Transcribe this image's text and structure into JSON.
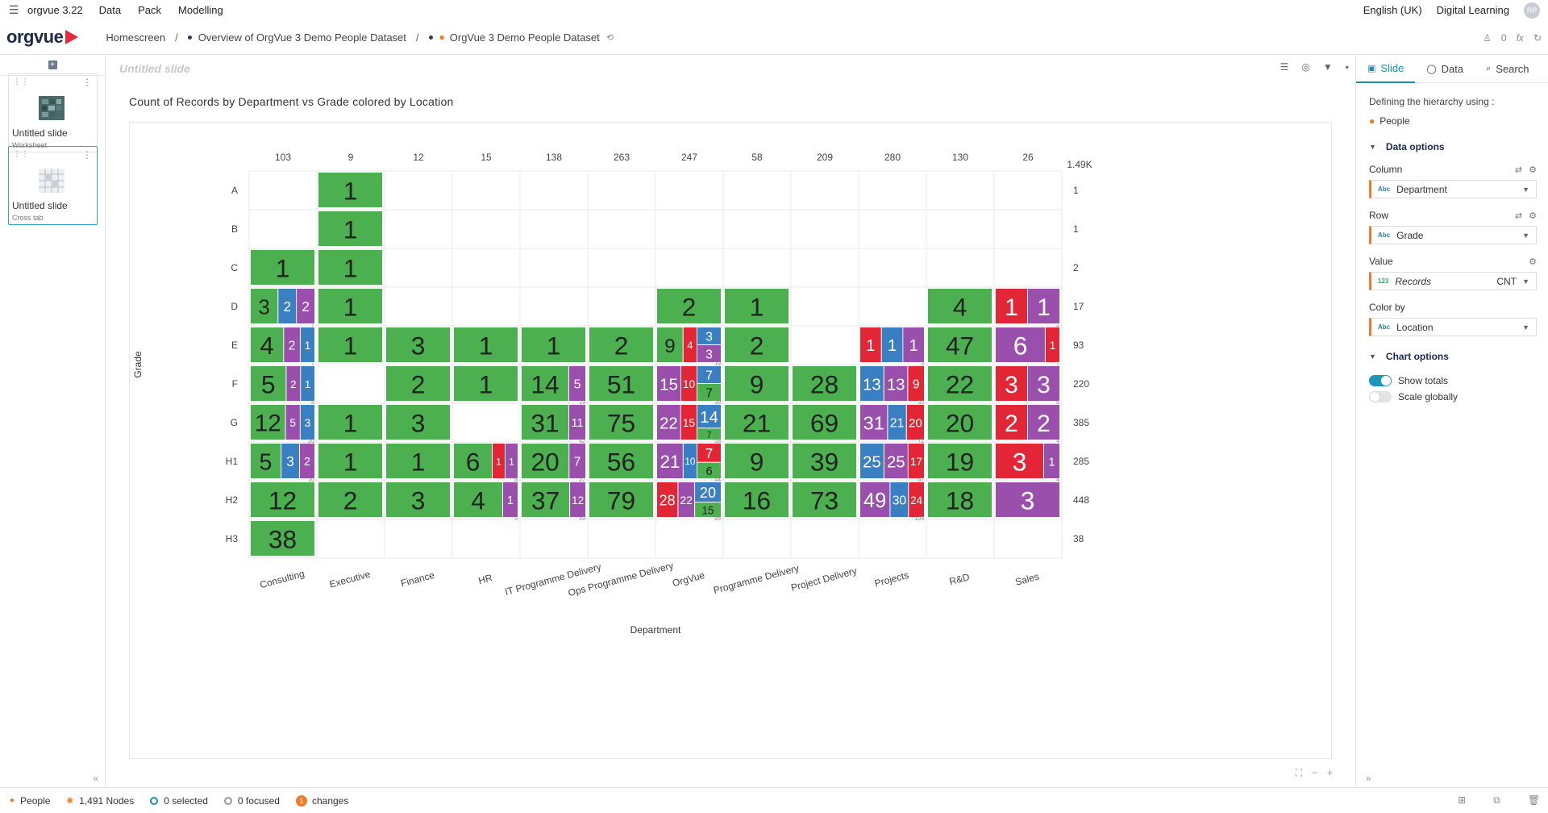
{
  "app": {
    "name": "orgvue 3.22",
    "menu": [
      "Data",
      "Pack",
      "Modelling"
    ]
  },
  "topbar_right": {
    "language": "English (UK)",
    "org": "Digital Learning",
    "avatar": "RP"
  },
  "logo": {
    "text": "orgvue"
  },
  "breadcrumb": {
    "home": "Homescreen",
    "overview": "Overview of OrgVue 3 Demo People Dataset",
    "dataset": "OrgVue 3 Demo People Dataset"
  },
  "breadcrumb_right": {
    "counter": "0",
    "fx": "fx"
  },
  "slides": [
    {
      "title": "Untitled slide",
      "subtitle": "Worksheet"
    },
    {
      "title": "Untitled slide",
      "subtitle": "Cross tab"
    }
  ],
  "main": {
    "slide_title": "Untitled slide",
    "chart_title": "Count of Records by Department vs Grade colored by Location"
  },
  "right_panel": {
    "tabs": [
      {
        "label": "Slide"
      },
      {
        "label": "Data"
      },
      {
        "label": "Search"
      }
    ],
    "hier_label": "Defining the hierarchy using :",
    "hier_value": "People",
    "data_options": "Data options",
    "column_label": "Column",
    "column_value": "Department",
    "row_label": "Row",
    "row_value": "Grade",
    "value_label": "Value",
    "value_value": "Records",
    "value_agg": "CNT",
    "colorby_label": "Color by",
    "colorby_value": "Location",
    "chart_options": "Chart options",
    "show_totals": "Show totals",
    "scale_globally": "Scale globally",
    "type_text": "Abc",
    "type_num": "123"
  },
  "status": {
    "dataset": "People",
    "nodes": "1,491 Nodes",
    "selected": "0 selected",
    "focused": "0 focused",
    "changes": "changes",
    "changes_count": "1"
  },
  "colors": {
    "green": "#4caf50",
    "blue": "#3a7fc1",
    "purple": "#9b4fad",
    "red": "#e32636",
    "accent": "#1a8fb0"
  },
  "chart_data": {
    "type": "table",
    "xlabel": "Department",
    "ylabel": "Grade",
    "columns": [
      "Consulting",
      "Executive",
      "Finance",
      "HR",
      "IT Programme Delivery",
      "Ops Programme Delivery",
      "OrgVue",
      "Programme Delivery",
      "Project Delivery",
      "Projects",
      "R&D",
      "Sales"
    ],
    "rows": [
      "A",
      "B",
      "C",
      "D",
      "E",
      "F",
      "G",
      "H1",
      "H2",
      "H3"
    ],
    "column_totals": [
      "103",
      "9",
      "12",
      "15",
      "138",
      "263",
      "247",
      "58",
      "209",
      "280",
      "130",
      "26"
    ],
    "grand_total": "1.49K",
    "row_totals": [
      "1",
      "1",
      "2",
      "17",
      "93",
      "220",
      "385",
      "285",
      "448",
      "38"
    ],
    "cells": [
      {
        "r": 0,
        "c": 1,
        "s": [
          {
            "v": "1",
            "col": "green"
          }
        ]
      },
      {
        "r": 1,
        "c": 1,
        "s": [
          {
            "v": "1",
            "col": "green"
          }
        ]
      },
      {
        "r": 2,
        "c": 0,
        "s": [
          {
            "v": "1",
            "col": "green"
          }
        ]
      },
      {
        "r": 2,
        "c": 1,
        "s": [
          {
            "v": "1",
            "col": "green"
          }
        ]
      },
      {
        "r": 3,
        "c": 0,
        "t": "7",
        "s": [
          {
            "v": "3",
            "col": "green"
          },
          {
            "v": "2",
            "col": "blue"
          },
          {
            "v": "2",
            "col": "purple"
          }
        ]
      },
      {
        "r": 3,
        "c": 1,
        "s": [
          {
            "v": "1",
            "col": "green"
          }
        ]
      },
      {
        "r": 3,
        "c": 6,
        "s": [
          {
            "v": "2",
            "col": "green"
          }
        ]
      },
      {
        "r": 3,
        "c": 7,
        "s": [
          {
            "v": "1",
            "col": "green"
          }
        ]
      },
      {
        "r": 3,
        "c": 10,
        "s": [
          {
            "v": "4",
            "col": "green"
          }
        ]
      },
      {
        "r": 3,
        "c": 11,
        "t": "2",
        "s": [
          {
            "v": "1",
            "col": "red"
          },
          {
            "v": "1",
            "col": "purple"
          }
        ]
      },
      {
        "r": 4,
        "c": 0,
        "t": "7",
        "s": [
          {
            "v": "4",
            "col": "green"
          },
          {
            "v": "2",
            "col": "purple"
          },
          {
            "v": "1",
            "col": "blue"
          }
        ]
      },
      {
        "r": 4,
        "c": 1,
        "s": [
          {
            "v": "1",
            "col": "green"
          }
        ]
      },
      {
        "r": 4,
        "c": 2,
        "s": [
          {
            "v": "3",
            "col": "green"
          }
        ]
      },
      {
        "r": 4,
        "c": 3,
        "s": [
          {
            "v": "1",
            "col": "green"
          }
        ]
      },
      {
        "r": 4,
        "c": 4,
        "s": [
          {
            "v": "1",
            "col": "green"
          }
        ]
      },
      {
        "r": 4,
        "c": 5,
        "s": [
          {
            "v": "2",
            "col": "green"
          }
        ]
      },
      {
        "r": 4,
        "c": 6,
        "t": "19",
        "s": [
          {
            "v": "9",
            "col": "green"
          },
          {
            "v": "4",
            "col": "red"
          },
          {
            "v": "3",
            "col": "blue"
          },
          {
            "v": "3",
            "col": "purple"
          }
        ]
      },
      {
        "r": 4,
        "c": 7,
        "s": [
          {
            "v": "2",
            "col": "green"
          }
        ]
      },
      {
        "r": 4,
        "c": 9,
        "t": "3",
        "s": [
          {
            "v": "1",
            "col": "red"
          },
          {
            "v": "1",
            "col": "blue"
          },
          {
            "v": "1",
            "col": "purple"
          }
        ]
      },
      {
        "r": 4,
        "c": 10,
        "s": [
          {
            "v": "47",
            "col": "green"
          }
        ]
      },
      {
        "r": 4,
        "c": 11,
        "t": "7",
        "s": [
          {
            "v": "6",
            "col": "purple"
          },
          {
            "v": "1",
            "col": "red"
          }
        ]
      },
      {
        "r": 5,
        "c": 0,
        "t": "8",
        "s": [
          {
            "v": "5",
            "col": "green"
          },
          {
            "v": "2",
            "col": "purple"
          },
          {
            "v": "1",
            "col": "blue"
          }
        ]
      },
      {
        "r": 5,
        "c": 2,
        "s": [
          {
            "v": "2",
            "col": "green"
          }
        ]
      },
      {
        "r": 5,
        "c": 3,
        "s": [
          {
            "v": "1",
            "col": "green"
          }
        ]
      },
      {
        "r": 5,
        "c": 4,
        "t": "19",
        "s": [
          {
            "v": "14",
            "col": "green"
          },
          {
            "v": "5",
            "col": "purple"
          }
        ]
      },
      {
        "r": 5,
        "c": 5,
        "s": [
          {
            "v": "51",
            "col": "green"
          }
        ]
      },
      {
        "r": 5,
        "c": 6,
        "t": "39",
        "s": [
          {
            "v": "15",
            "col": "purple"
          },
          {
            "v": "10",
            "col": "red"
          },
          {
            "v": "7",
            "col": "blue"
          },
          {
            "v": "7",
            "col": "green"
          }
        ]
      },
      {
        "r": 5,
        "c": 7,
        "s": [
          {
            "v": "9",
            "col": "green"
          }
        ]
      },
      {
        "r": 5,
        "c": 8,
        "s": [
          {
            "v": "28",
            "col": "green"
          }
        ]
      },
      {
        "r": 5,
        "c": 9,
        "t": "35",
        "s": [
          {
            "v": "13",
            "col": "blue"
          },
          {
            "v": "13",
            "col": "purple"
          },
          {
            "v": "9",
            "col": "red"
          }
        ]
      },
      {
        "r": 5,
        "c": 10,
        "s": [
          {
            "v": "22",
            "col": "green"
          }
        ]
      },
      {
        "r": 5,
        "c": 11,
        "t": "6",
        "s": [
          {
            "v": "3",
            "col": "red"
          },
          {
            "v": "3",
            "col": "purple"
          }
        ]
      },
      {
        "r": 6,
        "c": 0,
        "t": "20",
        "s": [
          {
            "v": "12",
            "col": "green"
          },
          {
            "v": "5",
            "col": "purple"
          },
          {
            "v": "3",
            "col": "blue"
          }
        ]
      },
      {
        "r": 6,
        "c": 1,
        "s": [
          {
            "v": "1",
            "col": "green"
          }
        ]
      },
      {
        "r": 6,
        "c": 2,
        "s": [
          {
            "v": "3",
            "col": "green"
          }
        ]
      },
      {
        "r": 6,
        "c": 4,
        "t": "42",
        "s": [
          {
            "v": "31",
            "col": "green"
          },
          {
            "v": "11",
            "col": "purple"
          }
        ]
      },
      {
        "r": 6,
        "c": 5,
        "s": [
          {
            "v": "75",
            "col": "green"
          }
        ]
      },
      {
        "r": 6,
        "c": 6,
        "t": "58",
        "s": [
          {
            "v": "22",
            "col": "purple"
          },
          {
            "v": "15",
            "col": "red"
          },
          {
            "v": "14",
            "col": "blue"
          },
          {
            "v": "7",
            "col": "green"
          }
        ]
      },
      {
        "r": 6,
        "c": 7,
        "s": [
          {
            "v": "21",
            "col": "green"
          }
        ]
      },
      {
        "r": 6,
        "c": 8,
        "s": [
          {
            "v": "69",
            "col": "green"
          }
        ]
      },
      {
        "r": 6,
        "c": 9,
        "t": "72",
        "s": [
          {
            "v": "31",
            "col": "purple"
          },
          {
            "v": "21",
            "col": "blue"
          },
          {
            "v": "20",
            "col": "red"
          }
        ]
      },
      {
        "r": 6,
        "c": 10,
        "s": [
          {
            "v": "20",
            "col": "green"
          }
        ]
      },
      {
        "r": 6,
        "c": 11,
        "t": "4",
        "s": [
          {
            "v": "2",
            "col": "red"
          },
          {
            "v": "2",
            "col": "purple"
          }
        ]
      },
      {
        "r": 7,
        "c": 0,
        "t": "10",
        "s": [
          {
            "v": "5",
            "col": "green"
          },
          {
            "v": "3",
            "col": "blue"
          },
          {
            "v": "2",
            "col": "purple"
          }
        ]
      },
      {
        "r": 7,
        "c": 1,
        "s": [
          {
            "v": "1",
            "col": "green"
          }
        ]
      },
      {
        "r": 7,
        "c": 2,
        "s": [
          {
            "v": "1",
            "col": "green"
          }
        ]
      },
      {
        "r": 7,
        "c": 3,
        "t": "8",
        "s": [
          {
            "v": "6",
            "col": "green"
          },
          {
            "v": "1",
            "col": "red"
          },
          {
            "v": "1",
            "col": "purple"
          }
        ]
      },
      {
        "r": 7,
        "c": 4,
        "t": "27",
        "s": [
          {
            "v": "20",
            "col": "green"
          },
          {
            "v": "7",
            "col": "purple"
          }
        ]
      },
      {
        "r": 7,
        "c": 5,
        "s": [
          {
            "v": "56",
            "col": "green"
          }
        ]
      },
      {
        "r": 7,
        "c": 6,
        "t": "44",
        "s": [
          {
            "v": "21",
            "col": "purple"
          },
          {
            "v": "10",
            "col": "blue"
          },
          {
            "v": "7",
            "col": "red"
          },
          {
            "v": "6",
            "col": "green"
          }
        ]
      },
      {
        "r": 7,
        "c": 7,
        "s": [
          {
            "v": "9",
            "col": "green"
          }
        ]
      },
      {
        "r": 7,
        "c": 8,
        "s": [
          {
            "v": "39",
            "col": "green"
          }
        ]
      },
      {
        "r": 7,
        "c": 9,
        "t": "67",
        "s": [
          {
            "v": "25",
            "col": "blue"
          },
          {
            "v": "25",
            "col": "purple"
          },
          {
            "v": "17",
            "col": "red"
          }
        ]
      },
      {
        "r": 7,
        "c": 10,
        "s": [
          {
            "v": "19",
            "col": "green"
          }
        ]
      },
      {
        "r": 7,
        "c": 11,
        "t": "4",
        "s": [
          {
            "v": "3",
            "col": "red"
          },
          {
            "v": "1",
            "col": "purple"
          }
        ]
      },
      {
        "r": 8,
        "c": 0,
        "s": [
          {
            "v": "12",
            "col": "green"
          }
        ]
      },
      {
        "r": 8,
        "c": 1,
        "s": [
          {
            "v": "2",
            "col": "green"
          }
        ]
      },
      {
        "r": 8,
        "c": 2,
        "s": [
          {
            "v": "3",
            "col": "green"
          }
        ]
      },
      {
        "r": 8,
        "c": 3,
        "t": "5",
        "s": [
          {
            "v": "4",
            "col": "green"
          },
          {
            "v": "1",
            "col": "purple"
          }
        ]
      },
      {
        "r": 8,
        "c": 4,
        "t": "49",
        "s": [
          {
            "v": "37",
            "col": "green"
          },
          {
            "v": "12",
            "col": "purple"
          }
        ]
      },
      {
        "r": 8,
        "c": 5,
        "s": [
          {
            "v": "79",
            "col": "green"
          }
        ]
      },
      {
        "r": 8,
        "c": 6,
        "t": "85",
        "s": [
          {
            "v": "28",
            "col": "red"
          },
          {
            "v": "22",
            "col": "purple"
          },
          {
            "v": "20",
            "col": "blue"
          },
          {
            "v": "15",
            "col": "green"
          }
        ]
      },
      {
        "r": 8,
        "c": 7,
        "s": [
          {
            "v": "16",
            "col": "green"
          }
        ]
      },
      {
        "r": 8,
        "c": 8,
        "s": [
          {
            "v": "73",
            "col": "green"
          }
        ]
      },
      {
        "r": 8,
        "c": 9,
        "t": "103",
        "s": [
          {
            "v": "49",
            "col": "purple"
          },
          {
            "v": "30",
            "col": "blue"
          },
          {
            "v": "24",
            "col": "red"
          }
        ]
      },
      {
        "r": 8,
        "c": 10,
        "s": [
          {
            "v": "18",
            "col": "green"
          }
        ]
      },
      {
        "r": 8,
        "c": 11,
        "s": [
          {
            "v": "3",
            "col": "purple"
          }
        ]
      },
      {
        "r": 9,
        "c": 0,
        "s": [
          {
            "v": "38",
            "col": "green"
          }
        ]
      }
    ]
  }
}
